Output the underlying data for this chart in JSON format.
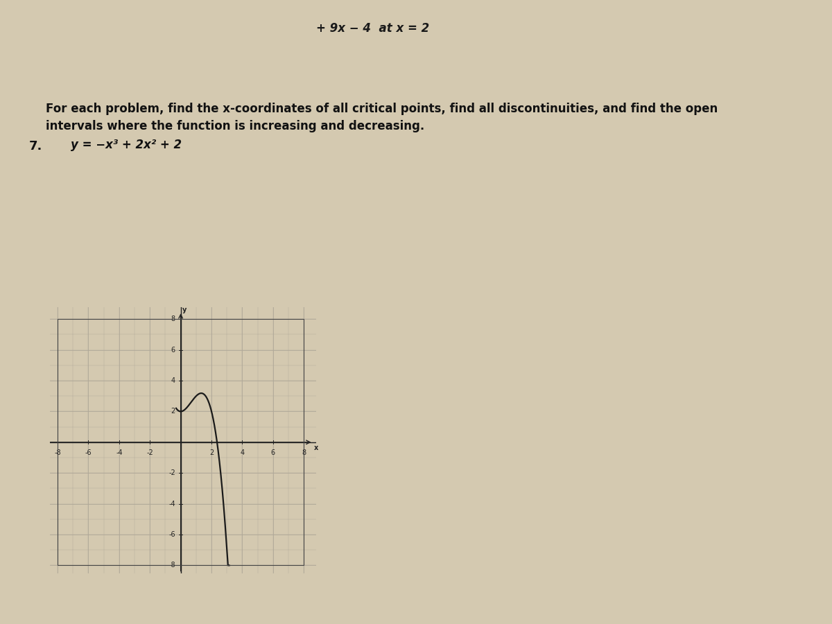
{
  "page_bg": "#d4c9b0",
  "top_text": "+ 9x − 4  at x = 2",
  "instruction_text_line1": "For each problem, find the x-coordinates of all critical points, find all discontinuities, and find the open",
  "instruction_text_line2": "intervals where the function is increasing and decreasing.",
  "problem_num": "7.",
  "function_text": "y = −x³ + 2x² + 2",
  "graph_bg": "#cfc4ab",
  "grid_color": "#b0a898",
  "axis_color": "#222222",
  "curve_color": "#1a1a1a",
  "curve_linewidth": 1.6,
  "xlim": [
    -8,
    8
  ],
  "ylim": [
    -8,
    8
  ],
  "xticks": [
    -8,
    -6,
    -4,
    -2,
    2,
    4,
    6,
    8
  ],
  "yticks": [
    -8,
    -6,
    -4,
    -2,
    2,
    4,
    6,
    8
  ],
  "x_curve_start": -0.3,
  "x_curve_end": 3.15,
  "separator_color": "#999080",
  "tick_fontsize": 7,
  "instr_fontsize": 12,
  "func_fontsize": 12
}
